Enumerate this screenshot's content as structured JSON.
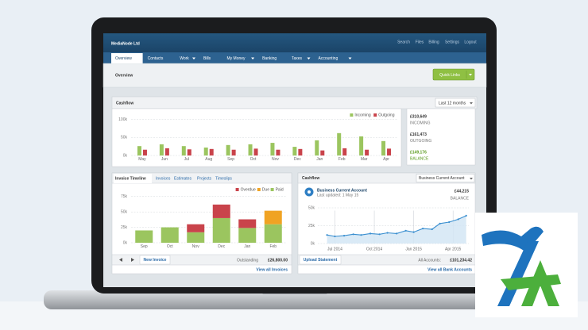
{
  "header": {
    "brand": "MediaNode Ltd",
    "links": [
      "Search",
      "Files",
      "Billing",
      "Settings",
      "Logout"
    ]
  },
  "nav": [
    {
      "label": "Overview",
      "active": true
    },
    {
      "label": "Contacts"
    },
    {
      "label": "Work",
      "menu": true
    },
    {
      "label": "Bills"
    },
    {
      "label": "My Money",
      "menu": true
    },
    {
      "label": "Banking"
    },
    {
      "label": "Taxes",
      "menu": true
    },
    {
      "label": "Accounting",
      "menu": true
    }
  ],
  "page": {
    "title": "Overview",
    "quick_links": "Quick Links"
  },
  "cashflow": {
    "title": "Cashflow",
    "period": "Last 12 months",
    "chart": {
      "type": "bar",
      "categories": [
        "May",
        "Jun",
        "Jul",
        "Aug",
        "Sep",
        "Oct",
        "Nov",
        "Dec",
        "Jan",
        "Feb",
        "Mar",
        "Apr"
      ],
      "series": [
        {
          "name": "Incoming",
          "color": "#9bc55f",
          "values": [
            26,
            31,
            26,
            22,
            29,
            31,
            35,
            24,
            42,
            62,
            53,
            40
          ]
        },
        {
          "name": "Outgoing",
          "color": "#c9434b",
          "values": [
            16,
            20,
            17,
            18,
            16,
            19,
            16,
            18,
            14,
            20,
            16,
            19
          ]
        }
      ],
      "ylim": [
        0,
        110
      ],
      "yticks": [
        {
          "value": 0,
          "label": "0k"
        },
        {
          "value": 50,
          "label": "50k"
        },
        {
          "value": 100,
          "label": "100k"
        }
      ],
      "grid": true,
      "legend": "top-right"
    },
    "totals": [
      {
        "amount": "£310,649",
        "label": "INCOMING"
      },
      {
        "amount": "£161,473",
        "label": "OUTGOING"
      },
      {
        "amount": "£149,176",
        "label": "BALANCE",
        "color": "#5a9a1e"
      }
    ]
  },
  "invoices": {
    "tabs": [
      "Invoice Timeline",
      "Invoices",
      "Estimates",
      "Projects",
      "Timeslips"
    ],
    "chart": {
      "type": "bar",
      "stacked": true,
      "categories": [
        "Sep",
        "Oct",
        "Nov",
        "Dec",
        "Jan",
        "Feb"
      ],
      "series": [
        {
          "name": "Overdue",
          "color": "#c9434b",
          "values": [
            0,
            0,
            13,
            22,
            14,
            0
          ]
        },
        {
          "name": "Due",
          "color": "#f0a323",
          "values": [
            0,
            0,
            0,
            0,
            0,
            22
          ]
        },
        {
          "name": "Paid",
          "color": "#9bc55f",
          "values": [
            20,
            25,
            17,
            40,
            24,
            30
          ]
        }
      ],
      "ylim": [
        0,
        85
      ],
      "yticks": [
        {
          "value": 0,
          "label": "0k"
        },
        {
          "value": 25,
          "label": "25k"
        },
        {
          "value": 50,
          "label": "50k"
        },
        {
          "value": 75,
          "label": "75k"
        }
      ],
      "grid": true,
      "legend": "top-right"
    },
    "new_invoice": "New Invoice",
    "outstanding_label": "Outstanding",
    "outstanding": "£26,800.00",
    "view_all": "View all Invoices"
  },
  "bank": {
    "title": "Cashflow",
    "account_select": "Business Current Account",
    "account_name": "Business Current Account",
    "updated": "Last updated: 1 May 15",
    "balance": "£44,215",
    "balance_label": "BALANCE",
    "chart": {
      "type": "line",
      "color": "#3a8fd0",
      "x": [
        -0.6,
        0,
        0.7,
        1.4,
        2,
        2.7,
        3.4,
        4,
        4.7,
        5.4,
        6,
        6.7,
        7.4,
        8,
        8.7,
        9.4,
        10
      ],
      "values": [
        12,
        10,
        11,
        13,
        12,
        14,
        13,
        15,
        14,
        18,
        16,
        21,
        20,
        28,
        30,
        34,
        39
      ],
      "xlim": [
        -1.3,
        10.2
      ],
      "xticks": [
        {
          "value": 0,
          "label": "Jul 2014"
        },
        {
          "value": 3,
          "label": "Oct 2014"
        },
        {
          "value": 6,
          "label": "Jan 2015"
        },
        {
          "value": 9,
          "label": "Apr 2015"
        }
      ],
      "ylim": [
        0,
        55
      ],
      "yticks": [
        {
          "value": 0,
          "label": "0k"
        },
        {
          "value": 25,
          "label": "25k"
        },
        {
          "value": 50,
          "label": "50k"
        }
      ],
      "grid": true
    },
    "upload": "Upload Statement",
    "all_accounts_label": "All Accounts:",
    "all_accounts": "£101,234.42",
    "view_all": "View all Bank Accounts"
  }
}
